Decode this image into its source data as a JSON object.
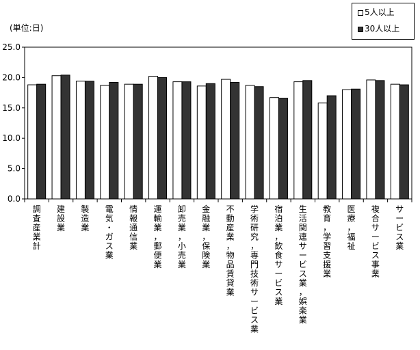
{
  "unit_label": "(単位:日)",
  "chart_data": {
    "type": "bar",
    "title": "",
    "xlabel": "",
    "ylabel": "",
    "ylim": [
      0,
      25
    ],
    "y_ticks": [
      "0.0",
      "5.0",
      "10.0",
      "15.0",
      "20.0",
      "25.0"
    ],
    "grid": false,
    "legend_position": "top-right",
    "categories": [
      "調査産業計",
      "建設業",
      "製造業",
      "電気・ガス業",
      "情報通信業",
      "運輸業，郵便業",
      "卸売業，小売業",
      "金融業，保険業",
      "不動産業，物品賃貸業",
      "学術研究，専門技術サービス業",
      "宿泊業，飲食サービス業",
      "生活関連サービス業，娯楽業",
      "教育，学習支援業",
      "医療，福祉",
      "複合サービス事業",
      "サービス業"
    ],
    "series": [
      {
        "name": "5人以上",
        "color": "#ffffff",
        "values": [
          18.8,
          20.3,
          19.4,
          18.7,
          18.9,
          20.2,
          19.3,
          18.6,
          19.7,
          18.7,
          16.7,
          19.3,
          15.8,
          18.0,
          19.6,
          18.9
        ]
      },
      {
        "name": "30人以上",
        "color": "#333333",
        "values": [
          18.9,
          20.4,
          19.4,
          19.2,
          18.9,
          20.0,
          19.3,
          19.0,
          19.2,
          18.5,
          16.6,
          19.5,
          17.0,
          18.1,
          19.5,
          18.8
        ]
      }
    ]
  }
}
